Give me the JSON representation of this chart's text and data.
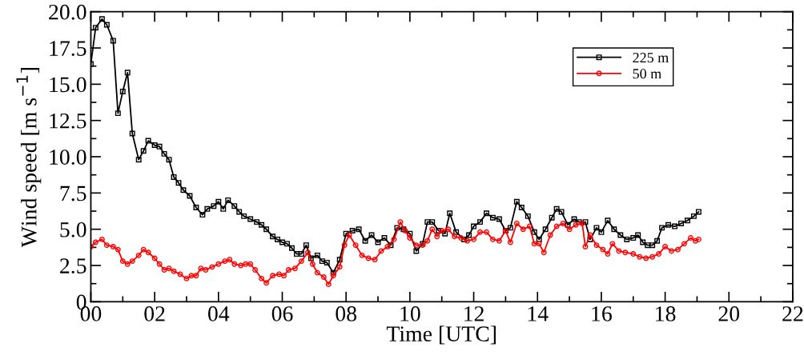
{
  "chart_data": {
    "type": "line",
    "xlabel": "Time [UTC]",
    "ylabel": "Wind speed [m s$^{−1}$]",
    "xlim": [
      0,
      22
    ],
    "ylim": [
      0,
      20
    ],
    "xticks": [
      {
        "value": 0,
        "label": "00"
      },
      {
        "value": 1,
        "label": null
      },
      {
        "value": 2,
        "label": "02"
      },
      {
        "value": 3,
        "label": null
      },
      {
        "value": 4,
        "label": "04"
      },
      {
        "value": 5,
        "label": null
      },
      {
        "value": 6,
        "label": "06"
      },
      {
        "value": 7,
        "label": null
      },
      {
        "value": 8,
        "label": "08"
      },
      {
        "value": 9,
        "label": null
      },
      {
        "value": 10,
        "label": "10"
      },
      {
        "value": 11,
        "label": null
      },
      {
        "value": 12,
        "label": "12"
      },
      {
        "value": 13,
        "label": null
      },
      {
        "value": 14,
        "label": "14"
      },
      {
        "value": 15,
        "label": null
      },
      {
        "value": 16,
        "label": "16"
      },
      {
        "value": 17,
        "label": null
      },
      {
        "value": 18,
        "label": "18"
      },
      {
        "value": 19,
        "label": null
      },
      {
        "value": 20,
        "label": "20"
      },
      {
        "value": 21,
        "label": null
      },
      {
        "value": 22,
        "label": "22"
      }
    ],
    "yticks": [
      0,
      {
        "value": 1.25,
        "label": null
      },
      2.5,
      {
        "value": 3.75,
        "label": null
      },
      {
        "value": 5,
        "label": "5.0"
      },
      {
        "value": 6.25,
        "label": null
      },
      7.5,
      {
        "value": 8.75,
        "label": null
      },
      {
        "value": 10,
        "label": "10.0"
      },
      {
        "value": 11.25,
        "label": null
      },
      12.5,
      {
        "value": 13.75,
        "label": null
      },
      {
        "value": 15,
        "label": "15.0"
      },
      {
        "value": 16.25,
        "label": null
      },
      17.5,
      {
        "value": 18.75,
        "label": null
      },
      {
        "value": 20,
        "label": "20.0"
      }
    ],
    "grid": false,
    "legend": "top right",
    "line_style": "solid",
    "series": [
      {
        "name": "225 m",
        "color": "#000000",
        "marker": "square",
        "x": [
          0,
          0.15,
          0.35,
          0.5,
          0.7,
          0.85,
          1.0,
          1.15,
          1.3,
          1.5,
          1.65,
          1.8,
          2.0,
          2.15,
          2.3,
          2.45,
          2.6,
          2.75,
          2.9,
          3.1,
          3.3,
          3.5,
          3.65,
          3.85,
          4.0,
          4.15,
          4.3,
          4.5,
          4.65,
          4.8,
          5.0,
          5.2,
          5.35,
          5.5,
          5.7,
          5.85,
          6.0,
          6.15,
          6.3,
          6.45,
          6.6,
          6.75,
          6.9,
          7.1,
          7.25,
          7.4,
          7.6,
          7.8,
          8.0,
          8.2,
          8.4,
          8.6,
          8.8,
          9.0,
          9.2,
          9.4,
          9.6,
          9.8,
          10.0,
          10.2,
          10.4,
          10.55,
          10.7,
          10.9,
          11.1,
          11.25,
          11.45,
          11.7,
          11.85,
          12.0,
          12.2,
          12.4,
          12.6,
          12.8,
          13.0,
          13.15,
          13.35,
          13.5,
          13.7,
          13.9,
          14.05,
          14.25,
          14.45,
          14.6,
          14.75,
          14.95,
          15.15,
          15.3,
          15.5,
          15.65,
          15.85,
          16.0,
          16.2,
          16.4,
          16.6,
          16.8,
          17.0,
          17.15,
          17.3,
          17.45,
          17.6,
          17.75,
          17.9,
          18.1,
          18.3,
          18.5,
          18.7,
          18.9,
          19.05
        ],
        "values": [
          16.4,
          18.9,
          19.5,
          19.1,
          18.0,
          13.0,
          14.5,
          15.8,
          11.6,
          9.8,
          10.4,
          11.1,
          10.8,
          10.7,
          10.2,
          9.8,
          8.6,
          8.2,
          7.7,
          7.3,
          6.5,
          6.0,
          6.4,
          6.6,
          6.9,
          6.4,
          7.0,
          6.6,
          6.2,
          5.9,
          5.7,
          5.5,
          5.3,
          5.0,
          4.5,
          4.3,
          4.1,
          4.0,
          3.7,
          3.3,
          3.3,
          3.9,
          3.0,
          3.2,
          2.8,
          2.7,
          2.0,
          2.9,
          4.7,
          4.9,
          5.0,
          4.2,
          4.6,
          4.1,
          4.4,
          3.9,
          5.1,
          5.0,
          4.7,
          3.5,
          4.0,
          5.5,
          5.5,
          4.9,
          4.7,
          6.1,
          4.8,
          4.3,
          4.6,
          5.2,
          5.5,
          6.1,
          5.8,
          5.7,
          4.9,
          5.1,
          6.9,
          6.5,
          5.9,
          4.8,
          4.3,
          5.0,
          5.8,
          6.4,
          6.2,
          5.3,
          5.7,
          5.5,
          5.5,
          4.3,
          5.1,
          4.8,
          5.6,
          5.0,
          4.6,
          4.3,
          4.4,
          4.6,
          4.1,
          3.9,
          3.9,
          4.2,
          5.1,
          5.3,
          5.2,
          5.4,
          5.6,
          5.9,
          6.2
        ]
      },
      {
        "name": "50 m",
        "color": "#ff0000",
        "marker": "circle",
        "x": [
          0,
          0.15,
          0.35,
          0.5,
          0.7,
          0.85,
          1.0,
          1.15,
          1.3,
          1.5,
          1.65,
          1.8,
          2.0,
          2.15,
          2.3,
          2.45,
          2.6,
          2.8,
          3.0,
          3.15,
          3.3,
          3.45,
          3.6,
          3.8,
          4.0,
          4.2,
          4.35,
          4.5,
          4.7,
          4.85,
          5.0,
          5.15,
          5.35,
          5.5,
          5.7,
          5.9,
          6.05,
          6.2,
          6.4,
          6.6,
          6.8,
          6.95,
          7.1,
          7.3,
          7.45,
          7.6,
          7.8,
          7.95,
          8.1,
          8.3,
          8.5,
          8.7,
          8.9,
          9.1,
          9.3,
          9.5,
          9.7,
          9.85,
          10.0,
          10.2,
          10.4,
          10.55,
          10.7,
          10.85,
          11.0,
          11.2,
          11.4,
          11.6,
          11.8,
          12.0,
          12.2,
          12.4,
          12.6,
          12.8,
          13.0,
          13.15,
          13.35,
          13.55,
          13.75,
          13.9,
          14.05,
          14.2,
          14.4,
          14.6,
          14.8,
          15.0,
          15.2,
          15.4,
          15.5,
          15.65,
          15.85,
          16.05,
          16.2,
          16.35,
          16.55,
          16.75,
          17.0,
          17.2,
          17.4,
          17.6,
          17.8,
          18.0,
          18.2,
          18.4,
          18.6,
          18.8,
          18.95,
          19.05
        ],
        "values": [
          3.8,
          4.1,
          4.3,
          3.9,
          3.8,
          3.6,
          2.8,
          2.6,
          2.8,
          3.2,
          3.6,
          3.4,
          3.0,
          2.6,
          2.2,
          2.3,
          2.1,
          1.9,
          1.6,
          1.8,
          1.8,
          2.3,
          2.2,
          2.4,
          2.6,
          2.8,
          2.9,
          2.6,
          2.5,
          2.6,
          2.6,
          2.2,
          1.6,
          1.3,
          1.8,
          1.9,
          1.8,
          2.2,
          2.3,
          2.8,
          3.4,
          2.6,
          2.0,
          1.7,
          1.2,
          1.8,
          2.4,
          3.9,
          4.6,
          3.9,
          3.2,
          3.0,
          2.9,
          3.5,
          3.8,
          4.3,
          5.5,
          4.9,
          4.4,
          3.9,
          3.9,
          4.2,
          5.0,
          4.5,
          4.9,
          5.0,
          4.5,
          4.4,
          4.2,
          4.3,
          4.8,
          4.8,
          4.3,
          4.2,
          4.9,
          4.1,
          5.4,
          5.0,
          5.2,
          4.0,
          4.0,
          3.4,
          4.6,
          5.2,
          5.4,
          5.0,
          5.3,
          5.4,
          3.8,
          4.6,
          3.9,
          3.6,
          3.3,
          4.0,
          3.5,
          3.4,
          3.3,
          3.1,
          3.0,
          3.1,
          3.3,
          3.8,
          3.5,
          3.6,
          4.0,
          4.4,
          4.2,
          4.3
        ]
      }
    ]
  }
}
